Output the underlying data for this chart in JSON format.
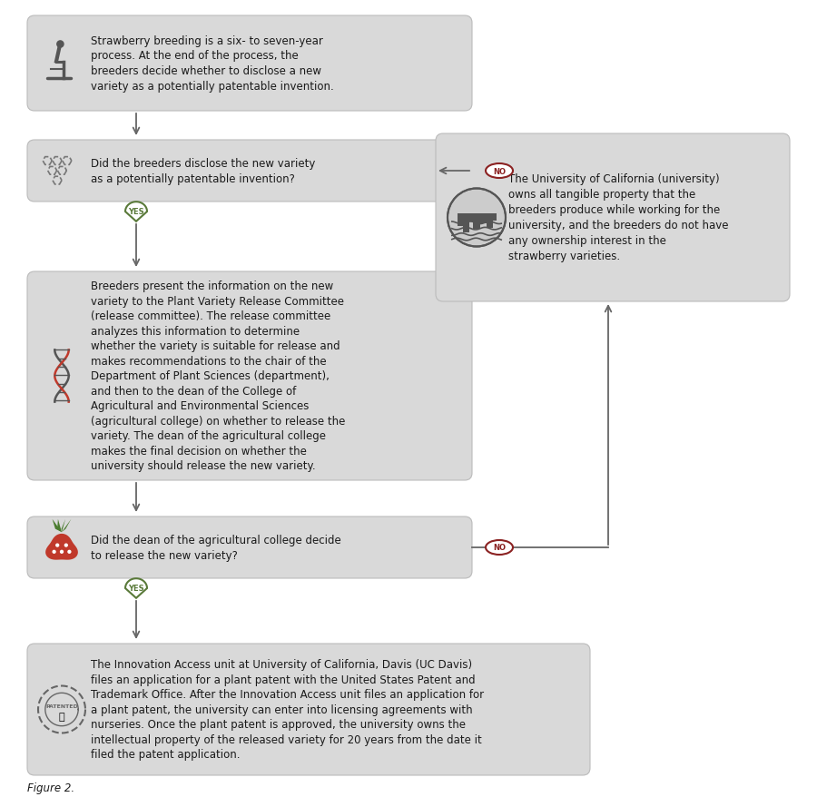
{
  "bg_color": "#ffffff",
  "box_fill": "#d9d9d9",
  "box_edge": "#bbbbbb",
  "yes_color": "#5a7a3a",
  "no_color": "#8b2222",
  "arrow_color": "#666666",
  "text_color": "#1a1a1a",
  "figure_label": "Figure 2.",
  "box1_text": "Strawberry breeding is a six- to seven-year\nprocess. At the end of the process, the\nbreeders decide whether to disclose a new\nvariety as a potentially patentable invention.",
  "box2_text": "Did the breeders disclose the new variety\nas a potentially patentable invention?",
  "box3_text": "Breeders present the information on the new\nvariety to the Plant Variety Release Committee\n(release committee). The release committee\nanalyzes this information to determine\nwhether the variety is suitable for release and\nmakes recommendations to the chair of the\nDepartment of Plant Sciences (department),\nand then to the dean of the College of\nAgricultural and Environmental Sciences\n(agricultural college) on whether to release the\nvariety. The dean of the agricultural college\nmakes the final decision on whether the\nuniversity should release the new variety.",
  "box4_text": "Did the dean of the agricultural college decide\nto release the new variety?",
  "box5_text": "The Innovation Access unit at University of California, Davis (UC Davis)\nfiles an application for a plant patent with the United States Patent and\nTrademark Office. After the Innovation Access unit files an application for\na plant patent, the university can enter into licensing agreements with\nnurseries. Once the plant patent is approved, the university owns the\nintellectual property of the released variety for 20 years from the date it\nfiled the patent application.",
  "boxno_text": "The University of California (university)\nowns all tangible property that the\nbreeders produce while working for the\nuniversity, and the breeders do not have\nany ownership interest in the\nstrawberry varieties."
}
